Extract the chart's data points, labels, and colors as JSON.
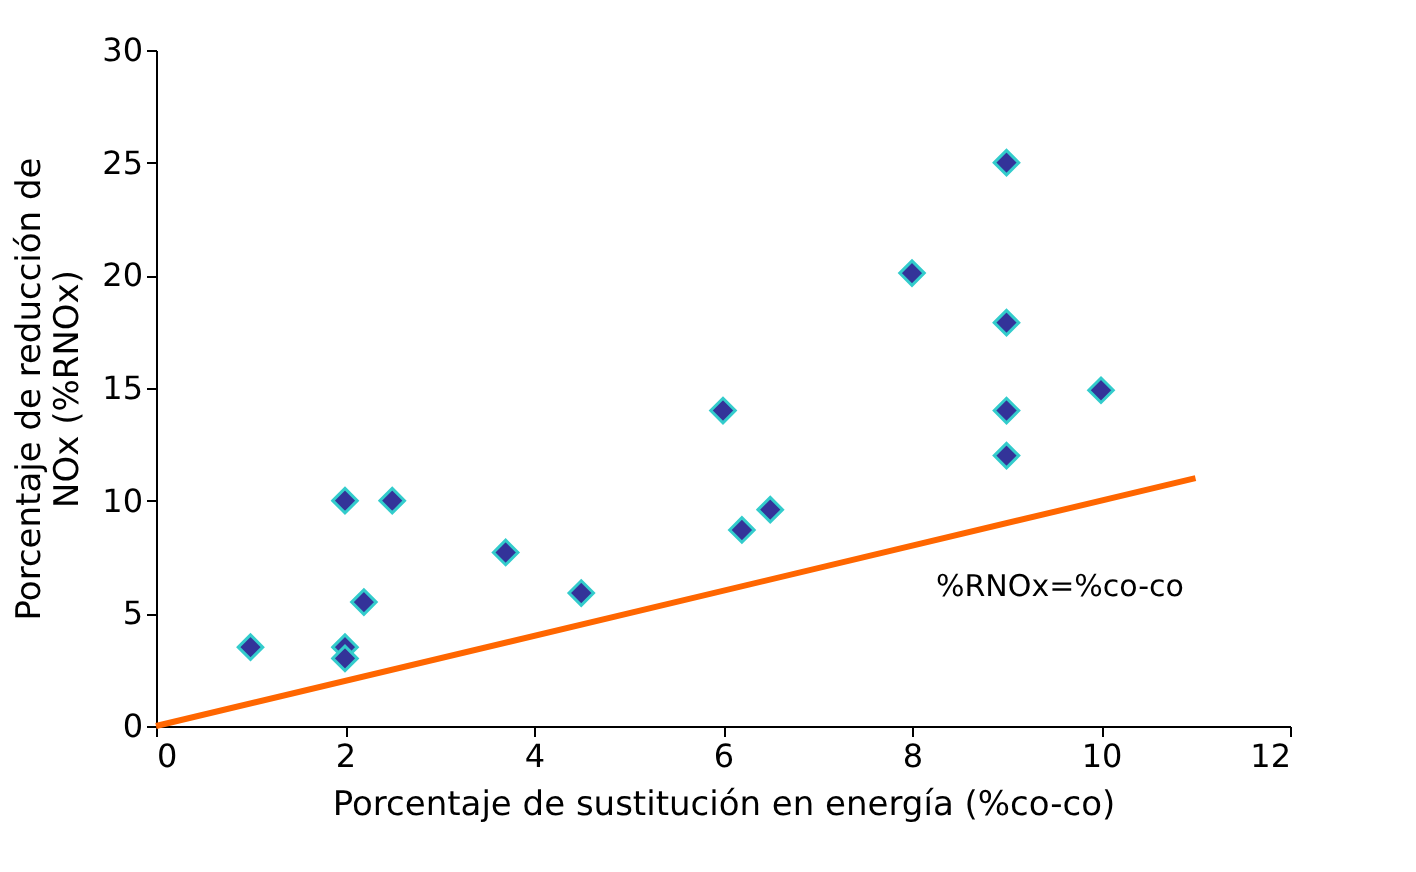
{
  "chart_data": {
    "type": "scatter",
    "xlabel": "Porcentaje de sustitución en energía (%co-co)",
    "ylabel": "Porcentaje de reducción de\nNOx (%RNOx)",
    "xlim": [
      0,
      12
    ],
    "xticks": [
      0,
      2,
      4,
      6,
      8,
      10,
      12
    ],
    "ylim": [
      0,
      30
    ],
    "yticks": [
      0,
      5,
      10,
      15,
      20,
      25,
      30
    ],
    "grid": false,
    "marker": "diamond",
    "series": [
      {
        "color": "#333399",
        "x": [
          1,
          2,
          2.2,
          2,
          2,
          2.5,
          3.7,
          4.5,
          6,
          6.2,
          6.5,
          8,
          9,
          9,
          9,
          9,
          10
        ],
        "values": [
          3.5,
          10,
          5.5,
          3.5,
          3,
          10,
          7.7,
          5.9,
          14,
          8.7,
          9.6,
          20.1,
          25,
          17.9,
          14,
          12,
          14.9
        ]
      },
      {
        "type": "line",
        "color": "#ff6600",
        "marker": "none",
        "line_style": "solid",
        "x": [
          0,
          11
        ],
        "values": [
          0,
          11
        ]
      }
    ],
    "annotations": [
      "%RNOx=%co-co"
    ]
  }
}
